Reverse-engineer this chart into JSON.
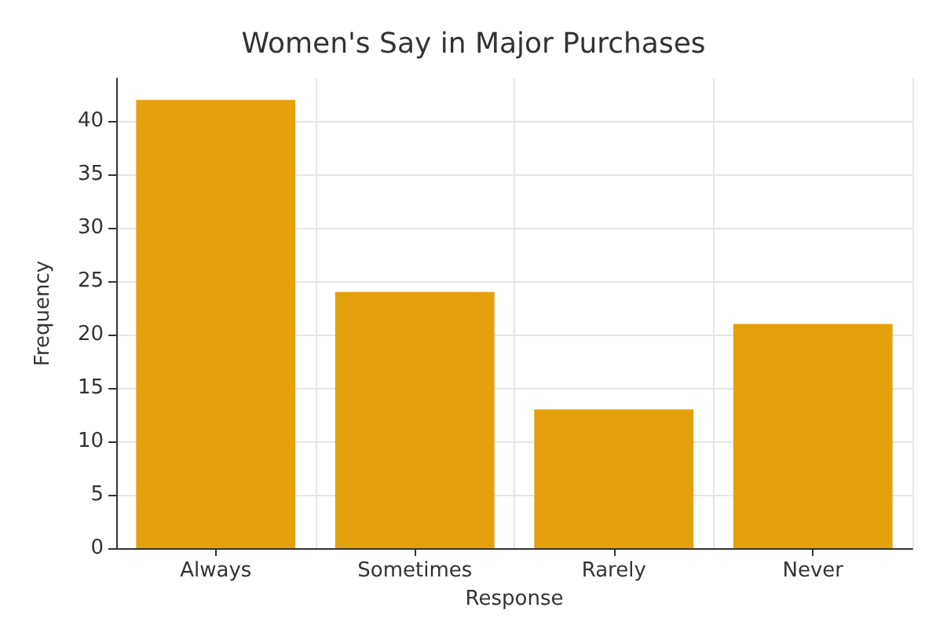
{
  "chart_data": {
    "type": "bar",
    "title": "Women's Say in Major Purchases",
    "xlabel": "Response",
    "ylabel": "Frequency",
    "categories": [
      "Always",
      "Sometimes",
      "Rarely",
      "Never"
    ],
    "values": [
      42,
      24,
      13,
      21
    ],
    "color": "#e5a00d",
    "ylim": [
      0,
      44
    ],
    "yticks": [
      0,
      5,
      10,
      15,
      20,
      25,
      30,
      35,
      40
    ],
    "grid": true
  }
}
